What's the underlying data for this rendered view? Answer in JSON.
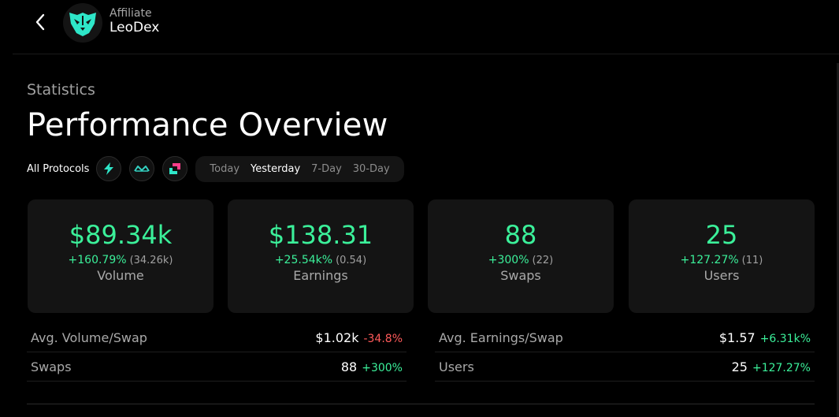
{
  "header": {
    "affiliate_label": "Affiliate",
    "name": "LeoDex",
    "logo_icon": "lion-logo-icon",
    "accent": "#2ee6c8"
  },
  "section_label": "Statistics",
  "title": "Performance Overview",
  "filters": {
    "all_label": "All Protocols",
    "protocols": [
      {
        "icon": "thorchain-bolt-icon",
        "color": "#2ee6c8"
      },
      {
        "icon": "maya-wave-icon",
        "color": "#33d0c0"
      },
      {
        "icon": "chainflip-icon",
        "color": "#ff3d8b"
      }
    ],
    "ranges": [
      "Today",
      "Yesterday",
      "7-Day",
      "30-Day"
    ],
    "active_range": "Yesterday"
  },
  "cards": [
    {
      "value": "$89.34k",
      "change": "+160.79%",
      "prev": "(34.26k)",
      "label": "Volume"
    },
    {
      "value": "$138.31",
      "change": "+25.54k%",
      "prev": "(0.54)",
      "label": "Earnings"
    },
    {
      "value": "88",
      "change": "+300%",
      "prev": "(22)",
      "label": "Swaps"
    },
    {
      "value": "25",
      "change": "+127.27%",
      "prev": "(11)",
      "label": "Users"
    }
  ],
  "metrics": [
    {
      "label": "Avg. Volume/Swap",
      "value": "$1.02k",
      "change": "-34.8%",
      "trend": "negative"
    },
    {
      "label": "Avg. Earnings/Swap",
      "value": "$1.57",
      "change": "+6.31k%",
      "trend": "positive"
    },
    {
      "label": "Swaps",
      "value": "88",
      "change": "+300%",
      "trend": "positive"
    },
    {
      "label": "Users",
      "value": "25",
      "change": "+127.27%",
      "trend": "positive"
    }
  ],
  "colors": {
    "positive": "#3bf09a",
    "negative": "#ff5a5a",
    "card_bg": "#141414",
    "page_bg": "#000000"
  }
}
